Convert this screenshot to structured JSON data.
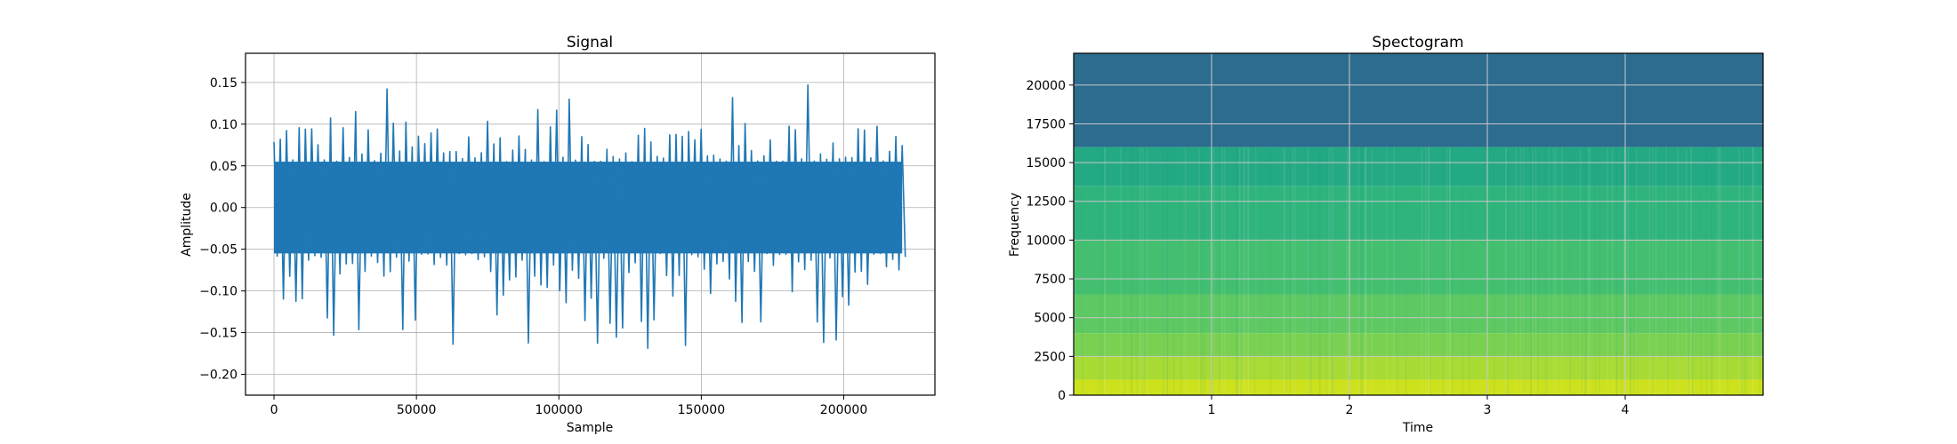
{
  "chart_data": [
    {
      "type": "line",
      "title": "Signal",
      "xlabel": "Sample",
      "ylabel": "Amplitude",
      "xlim": [
        -10000,
        232000
      ],
      "ylim": [
        -0.225,
        0.185
      ],
      "x_ticks": [
        0,
        50000,
        100000,
        150000,
        200000
      ],
      "x_tick_labels": [
        "0",
        "50000",
        "100000",
        "150000",
        "200000"
      ],
      "y_ticks": [
        -0.2,
        -0.15,
        -0.1,
        -0.05,
        0.0,
        0.05,
        0.1,
        0.15
      ],
      "y_tick_labels": [
        "−0.20",
        "−0.15",
        "−0.10",
        "−0.05",
        "0.00",
        "0.05",
        "0.10",
        "0.15"
      ],
      "grid": true,
      "series": [
        {
          "color": "#1f77b4",
          "x_start": 0,
          "x_end": 220500,
          "x_step": 2205,
          "peak_max": [
            0.115,
            0.155,
            0.12,
            0.125,
            0.14,
            0.11,
            0.15,
            0.13,
            0.12,
            0.145,
            0.13,
            0.125,
            0.14,
            0.135,
            0.12,
            0.165,
            0.13,
            0.125,
            0.14,
            0.13,
            0.12,
            0.145,
            0.13,
            0.15,
            0.125,
            0.14,
            0.12,
            0.135,
            0.13,
            0.168,
            0.13,
            0.125,
            0.14,
            0.125,
            0.12
          ],
          "peak_min": [
            -0.1,
            -0.13,
            -0.15,
            -0.2,
            -0.16,
            -0.205,
            -0.17,
            -0.18,
            -0.16,
            -0.15,
            -0.205,
            -0.17,
            -0.16,
            -0.18,
            -0.17,
            -0.16,
            -0.15,
            -0.175,
            -0.19,
            -0.203,
            -0.17,
            -0.16,
            -0.19,
            -0.17,
            -0.16,
            -0.185,
            -0.16,
            -0.17,
            -0.15,
            -0.16,
            -0.17,
            -0.15,
            -0.14,
            -0.13,
            -0.1
          ],
          "core_amplitude": 0.055
        }
      ]
    },
    {
      "type": "heatmap",
      "title": "Spectogram",
      "xlabel": "Time",
      "ylabel": "Frequency",
      "xlim": [
        0,
        5
      ],
      "ylim": [
        0,
        22050
      ],
      "x_ticks": [
        1,
        2,
        3,
        4
      ],
      "x_tick_labels": [
        "1",
        "2",
        "3",
        "4"
      ],
      "y_ticks": [
        0,
        2500,
        5000,
        7500,
        10000,
        12500,
        15000,
        17500,
        20000
      ],
      "y_tick_labels": [
        "0",
        "2500",
        "5000",
        "7500",
        "10000",
        "12500",
        "15000",
        "17500",
        "20000"
      ],
      "grid": true,
      "colormap": "viridis",
      "cutoff_frequency": 16000,
      "bands": [
        {
          "from": 0,
          "to": 1000,
          "color": "#cde11d"
        },
        {
          "from": 1000,
          "to": 2500,
          "color": "#a8db34"
        },
        {
          "from": 2500,
          "to": 4000,
          "color": "#7ad151"
        },
        {
          "from": 4000,
          "to": 6500,
          "color": "#5ec962"
        },
        {
          "from": 6500,
          "to": 10000,
          "color": "#44bf70"
        },
        {
          "from": 10000,
          "to": 13500,
          "color": "#2fb47c"
        },
        {
          "from": 13500,
          "to": 16000,
          "color": "#23a983"
        },
        {
          "from": 16000,
          "to": 22050,
          "color": "#2c6c8e"
        }
      ]
    }
  ]
}
